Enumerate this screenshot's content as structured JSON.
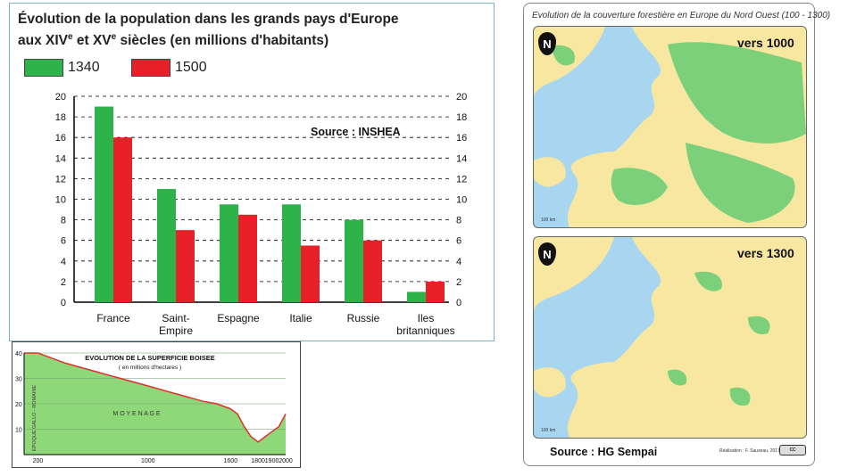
{
  "bar_chart": {
    "title_line1": "Évolution de la population dans les grands pays d'Europe",
    "title_line2_a": "aux XIV",
    "title_sup1": "e",
    "title_line2_b": " et XV",
    "title_sup2": "e",
    "title_line2_c": " siècles (en millions d'habitants)",
    "source": "Source : INSHEA",
    "colors": {
      "s1340": "#2db34a",
      "s1500": "#e8202a"
    }
  },
  "forest_chart": {
    "title": "EVOLUTION DE LA SUPERFICIE BOISEE",
    "subtitle": "( en millions d'hectares )",
    "label_roman": "EPOQUE GALLO - ROMAINE",
    "label_middle_age": "M O Y E N   A G E",
    "colors": {
      "fill": "#8fd87a",
      "line": "#e03030"
    }
  },
  "map_panel": {
    "title": "Evolution de la couverture forestière en Europe du Nord Ouest (100 - 1300)",
    "map1_label": "vers 1000",
    "map2_label": "vers 1300",
    "compass_letter": "N",
    "scale_text": "100 km",
    "source": "Source : HG Sempai",
    "credit": "Réalisation : F. Sauzeau, 2017",
    "cc_badge": "cc",
    "colors": {
      "sea": "#a8d6f0",
      "land": "#f7e7a1",
      "forest": "#7cd07a"
    }
  },
  "chart_data": [
    {
      "type": "bar",
      "title": "Évolution de la population dans les grands pays d'Europe aux XIVe et XVe siècles (en millions d'habitants)",
      "categories": [
        "France",
        "Saint-Empire",
        "Espagne",
        "Italie",
        "Russie",
        "Iles britanniques"
      ],
      "series": [
        {
          "name": "1340",
          "values": [
            19,
            11,
            9.5,
            9.5,
            8,
            1
          ]
        },
        {
          "name": "1500",
          "values": [
            16,
            7,
            8.5,
            5.5,
            6,
            2
          ]
        }
      ],
      "ylim": [
        0,
        20
      ],
      "yticks": [
        0,
        2,
        4,
        6,
        8,
        10,
        12,
        14,
        16,
        18,
        20
      ],
      "grid": true,
      "legend": "top-left"
    },
    {
      "type": "area",
      "title": "EVOLUTION DE LA SUPERFICIE BOISEE",
      "subtitle": "( en millions d'hectares )",
      "x": [
        100,
        200,
        400,
        600,
        800,
        1000,
        1200,
        1400,
        1500,
        1600,
        1650,
        1700,
        1750,
        1800,
        1850,
        1900,
        1950,
        2000
      ],
      "y": [
        40,
        40,
        36,
        33,
        30,
        27,
        24,
        21,
        20,
        18,
        16,
        11,
        7,
        5,
        7,
        9,
        11,
        16
      ],
      "xticks": [
        200,
        1000,
        1600,
        1800,
        1900,
        2000
      ],
      "yticks": [
        10,
        20,
        30,
        40
      ],
      "xlim": [
        100,
        2000
      ],
      "ylim": [
        0,
        40
      ]
    }
  ]
}
